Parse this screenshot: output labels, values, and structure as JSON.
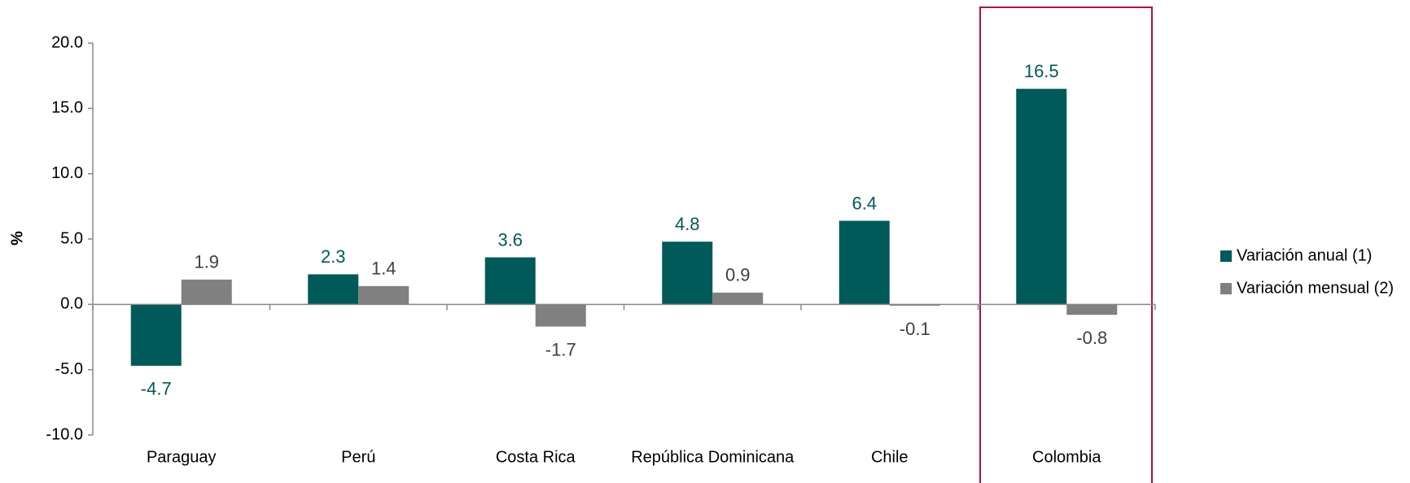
{
  "chart_data": {
    "type": "bar",
    "ylabel": "%",
    "categories": [
      "Paraguay",
      "Perú",
      "Costa Rica",
      "República Dominicana",
      "Chile",
      "Colombia"
    ],
    "series": [
      {
        "name": "Variación anual (1)",
        "color": "#005a5a",
        "values": [
          -4.7,
          2.3,
          3.6,
          4.8,
          6.4,
          16.5
        ]
      },
      {
        "name": "Variación mensual (2)",
        "color": "#808080",
        "values": [
          1.9,
          1.4,
          -1.7,
          0.9,
          -0.1,
          -0.8
        ]
      }
    ],
    "ylim": [
      -10,
      20
    ],
    "yticks": [
      {
        "value": -10,
        "label": "-10.0"
      },
      {
        "value": -5,
        "label": "-5.0"
      },
      {
        "value": 0,
        "label": "0.0"
      },
      {
        "value": 5,
        "label": "5.0"
      },
      {
        "value": 10,
        "label": "10.0"
      },
      {
        "value": 15,
        "label": "15.0"
      },
      {
        "value": 20,
        "label": "20.0"
      }
    ],
    "legend": "right"
  }
}
